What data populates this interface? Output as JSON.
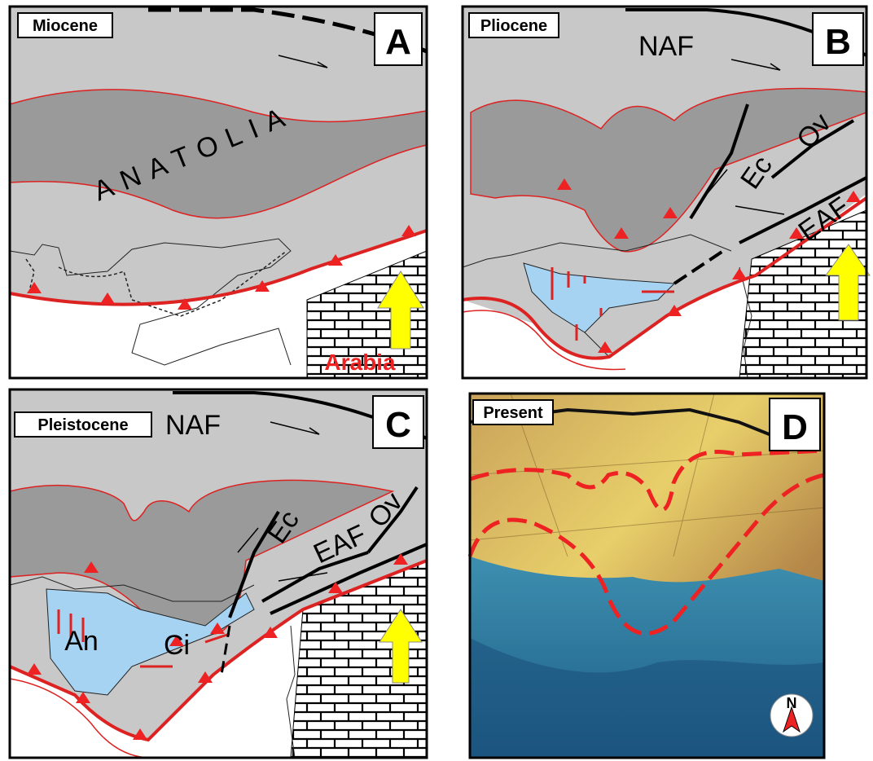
{
  "panels": [
    {
      "period": "Miocene",
      "letter": "A",
      "labels": [
        "ANATOLIA",
        "Arabia"
      ]
    },
    {
      "period": "Pliocene",
      "letter": "B",
      "labels": [
        "NAF",
        "Ec",
        "Ov",
        "EAF"
      ]
    },
    {
      "period": "Pleistocene",
      "letter": "C",
      "labels": [
        "NAF",
        "Ec",
        "EAF",
        "Ov",
        "An",
        "Ci"
      ]
    },
    {
      "period": "Present",
      "letter": "D",
      "labels": [
        "N"
      ]
    }
  ]
}
